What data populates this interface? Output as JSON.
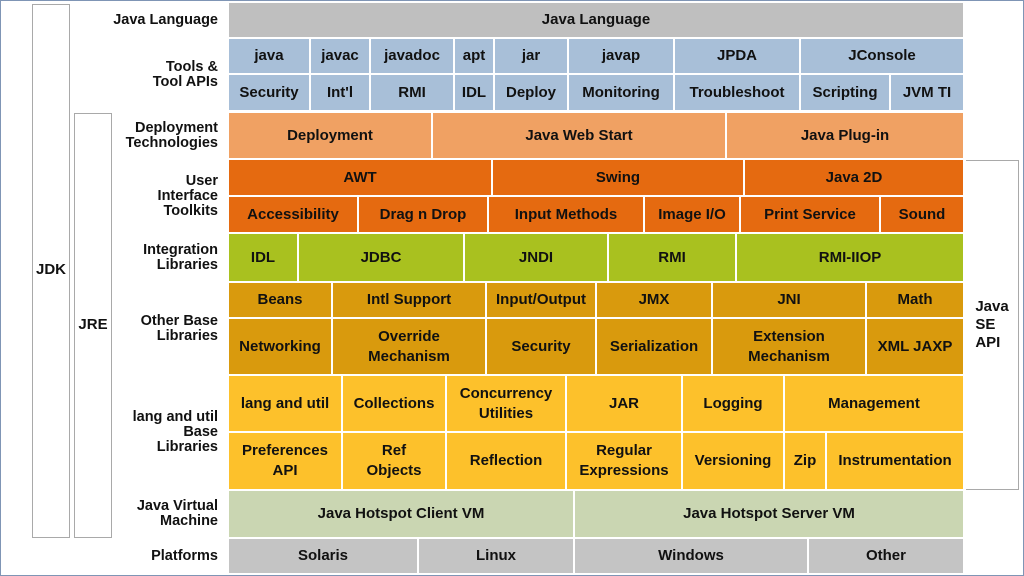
{
  "labels": {
    "jdk": "JDK",
    "jre": "JRE",
    "java_se_api": "Java\nSE\nAPI"
  },
  "rows": [
    {
      "label": "Java Language",
      "cells": [
        "Java Language"
      ]
    },
    {
      "label": "Tools &\nTool APIs",
      "cells": [
        "java",
        "javac",
        "javadoc",
        "apt",
        "jar",
        "javap",
        "JPDA",
        "JConsole",
        "Security",
        "Int'l",
        "RMI",
        "IDL",
        "Deploy",
        "Monitoring",
        "Troubleshoot",
        "Scripting",
        "JVM TI"
      ]
    },
    {
      "label": "Deployment\nTechnologies",
      "cells": [
        "Deployment",
        "Java Web Start",
        "Java Plug-in"
      ]
    },
    {
      "label": "User\nInterface\nToolkits",
      "cells": [
        "AWT",
        "Swing",
        "Java 2D",
        "Accessibility",
        "Drag n Drop",
        "Input Methods",
        "Image I/O",
        "Print Service",
        "Sound"
      ]
    },
    {
      "label": "Integration\nLibraries",
      "cells": [
        "IDL",
        "JDBC",
        "JNDI",
        "RMI",
        "RMI-IIOP"
      ]
    },
    {
      "label": "Other Base\nLibraries",
      "cells": [
        "Beans",
        "Intl Support",
        "Input/Output",
        "JMX",
        "JNI",
        "Math",
        "Networking",
        "Override\nMechanism",
        "Security",
        "Serialization",
        "Extension\nMechanism",
        "XML JAXP"
      ]
    },
    {
      "label": "lang and util\nBase\nLibraries",
      "cells": [
        "lang and util",
        "Collections",
        "Concurrency\nUtilities",
        "JAR",
        "Logging",
        "Management",
        "Preferences\nAPI",
        "Ref\nObjects",
        "Reflection",
        "Regular\nExpressions",
        "Versioning",
        "Zip",
        "Instrumentation"
      ]
    },
    {
      "label": "Java Virtual\nMachine",
      "cells": [
        "Java Hotspot Client VM",
        "Java Hotspot Server VM"
      ]
    },
    {
      "label": "Platforms",
      "cells": [
        "Solaris",
        "Linux",
        "Windows",
        "Other"
      ]
    }
  ]
}
